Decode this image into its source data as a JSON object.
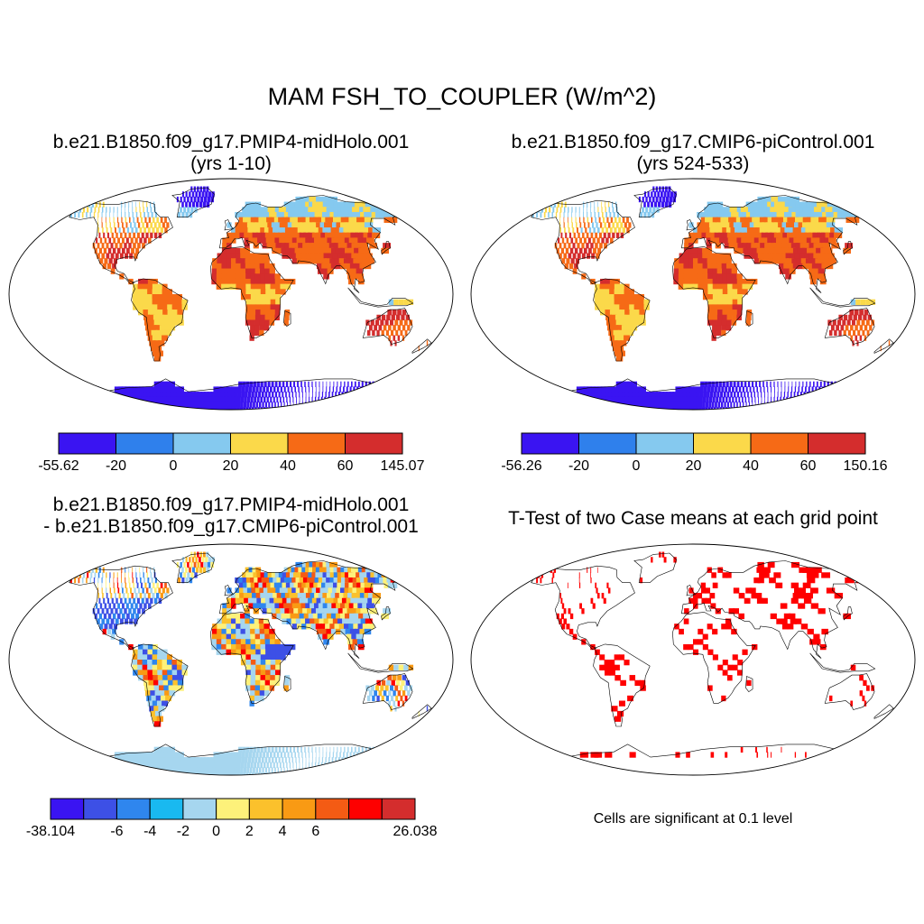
{
  "title": "MAM FSH_TO_COUPLER (W/m^2)",
  "panels": [
    {
      "id": "midholo",
      "title_lines": [
        "b.e21.B1850.f09_g17.PMIP4-midHolo.001",
        "(yrs 1-10)"
      ],
      "colorbar": {
        "colors": [
          "#3a14f2",
          "#2f80ec",
          "#85c9ef",
          "#fbd94a",
          "#f66a16",
          "#d42d2d"
        ],
        "labels": [
          "-55.62",
          "-20",
          "0",
          "20",
          "40",
          "60",
          "145.07"
        ]
      }
    },
    {
      "id": "picontrol",
      "title_lines": [
        "b.e21.B1850.f09_g17.CMIP6-piControl.001",
        "(yrs 524-533)"
      ],
      "colorbar": {
        "colors": [
          "#3a14f2",
          "#2f80ec",
          "#85c9ef",
          "#fbd94a",
          "#f66a16",
          "#d42d2d"
        ],
        "labels": [
          "-56.26",
          "-20",
          "0",
          "20",
          "40",
          "60",
          "150.16"
        ]
      }
    },
    {
      "id": "difference",
      "title_lines": [
        "b.e21.B1850.f09_g17.PMIP4-midHolo.001",
        "- b.e21.B1850.f09_g17.CMIP6-piControl.001"
      ],
      "colorbar": {
        "colors": [
          "#3a14f2",
          "#3d50e6",
          "#2f86ee",
          "#19b9f0",
          "#a6d6ef",
          "#fdf17a",
          "#fbc12c",
          "#f99a14",
          "#f45b14",
          "#fe0000",
          "#d42d2d"
        ],
        "labels": [
          "-38.104",
          "",
          "-6",
          "-4",
          "-2",
          "0",
          "2",
          "4",
          "6",
          "",
          "",
          "26.038"
        ]
      }
    },
    {
      "id": "ttest",
      "title_lines": [
        "T-Test of two Case means at each grid point"
      ],
      "note": "Cells are significant at 0.1 level"
    }
  ],
  "map_colors": {
    "ocean": "#ffffff",
    "outline": "#000000",
    "significant": "#ff0000"
  }
}
